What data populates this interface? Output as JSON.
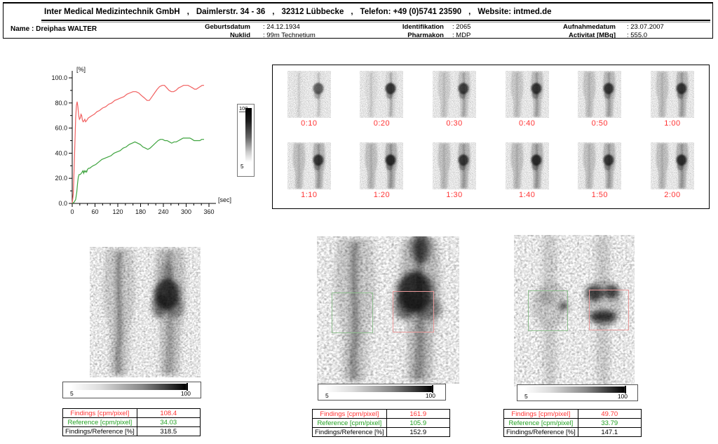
{
  "colors": {
    "red": "#ff3333",
    "green": "#22a122",
    "roi_green": "#8ebf8e",
    "roi_red": "#ea9a9a",
    "curve_red": "#f15f5f",
    "curve_green": "#3fa43f"
  },
  "header": {
    "company_segments": [
      "Inter Medical Medizintechnik GmbH",
      "Daimlerstr. 34 - 36",
      "32312 Lübbecke",
      "Telefon: +49 (0)5741 23590",
      "Website: intmed.de"
    ],
    "company_separator": ",",
    "patient": {
      "name_label": "Name",
      "name_value": ": Dreiphas WALTER",
      "fields": [
        {
          "label": "Geburtsdatum",
          "value": ": 24.12.1934"
        },
        {
          "label": "Nuklid",
          "value": ": 99m Technetium"
        },
        {
          "label": "Identifikation",
          "value": ": 2065"
        },
        {
          "label": "Pharmakon",
          "value": ": MDP"
        },
        {
          "label": "Aufnahmedatum",
          "value": ": 23.07.2007"
        },
        {
          "label": "Activitat [MBq]",
          "value": ": 555.0"
        }
      ]
    }
  },
  "chart_data": {
    "type": "line",
    "title": "",
    "xlabel": "[sec]",
    "ylabel": "[%]",
    "xlim": [
      0,
      360
    ],
    "ylim": [
      0,
      100
    ],
    "xticks": [
      0,
      60,
      120,
      180,
      240,
      300,
      360
    ],
    "xtick_labels": [
      "0",
      "60",
      "120",
      "180",
      "240",
      "300",
      "360"
    ],
    "x_minor_step": 20,
    "yticks": [
      0,
      20,
      40,
      60,
      80,
      100
    ],
    "ytick_labels": [
      "0.0",
      "20.0",
      "40.0",
      "60.0",
      "80.0",
      "100.0"
    ],
    "y_minor_step": 10,
    "grid": false,
    "legend": null,
    "series": [
      {
        "name": "findings-curve",
        "color": "#f15f5f",
        "points": [
          [
            0,
            0
          ],
          [
            3,
            8
          ],
          [
            6,
            38
          ],
          [
            9,
            68
          ],
          [
            11,
            78
          ],
          [
            13,
            81
          ],
          [
            15,
            77
          ],
          [
            17,
            70
          ],
          [
            19,
            67
          ],
          [
            21,
            68
          ],
          [
            23,
            71
          ],
          [
            25,
            70
          ],
          [
            27,
            66
          ],
          [
            29,
            65
          ],
          [
            31,
            66
          ],
          [
            33,
            67
          ],
          [
            35,
            65
          ],
          [
            38,
            66
          ],
          [
            42,
            68
          ],
          [
            47,
            69
          ],
          [
            52,
            70
          ],
          [
            58,
            71
          ],
          [
            65,
            73
          ],
          [
            72,
            74
          ],
          [
            80,
            76
          ],
          [
            88,
            77
          ],
          [
            96,
            79
          ],
          [
            104,
            80
          ],
          [
            112,
            82
          ],
          [
            120,
            83
          ],
          [
            128,
            84
          ],
          [
            136,
            85
          ],
          [
            144,
            87
          ],
          [
            152,
            88
          ],
          [
            160,
            89
          ],
          [
            168,
            89
          ],
          [
            175,
            88
          ],
          [
            182,
            86
          ],
          [
            190,
            84
          ],
          [
            197,
            82
          ],
          [
            203,
            82
          ],
          [
            210,
            85
          ],
          [
            217,
            88
          ],
          [
            224,
            91
          ],
          [
            230,
            93
          ],
          [
            237,
            94
          ],
          [
            243,
            94
          ],
          [
            249,
            92
          ],
          [
            255,
            90
          ],
          [
            261,
            89
          ],
          [
            267,
            89
          ],
          [
            273,
            90
          ],
          [
            280,
            92
          ],
          [
            287,
            93
          ],
          [
            293,
            94
          ],
          [
            299,
            94
          ],
          [
            305,
            94
          ],
          [
            311,
            93
          ],
          [
            317,
            92
          ],
          [
            322,
            91
          ],
          [
            327,
            91
          ],
          [
            332,
            92
          ],
          [
            337,
            93
          ],
          [
            342,
            94
          ],
          [
            347,
            94
          ]
        ]
      },
      {
        "name": "reference-curve",
        "color": "#3fa43f",
        "points": [
          [
            0,
            0
          ],
          [
            5,
            1
          ],
          [
            9,
            3
          ],
          [
            12,
            9
          ],
          [
            14,
            16
          ],
          [
            16,
            21
          ],
          [
            18,
            23
          ],
          [
            21,
            23
          ],
          [
            24,
            24
          ],
          [
            26,
            25
          ],
          [
            28,
            26
          ],
          [
            30,
            24
          ],
          [
            32,
            26
          ],
          [
            34,
            25
          ],
          [
            36,
            26
          ],
          [
            38,
            25
          ],
          [
            40,
            27
          ],
          [
            43,
            28
          ],
          [
            46,
            28
          ],
          [
            50,
            29
          ],
          [
            55,
            30
          ],
          [
            62,
            31
          ],
          [
            70,
            33
          ],
          [
            78,
            35
          ],
          [
            86,
            36
          ],
          [
            94,
            37
          ],
          [
            102,
            38
          ],
          [
            110,
            40
          ],
          [
            118,
            41
          ],
          [
            126,
            42
          ],
          [
            134,
            44
          ],
          [
            142,
            45
          ],
          [
            150,
            47
          ],
          [
            158,
            48
          ],
          [
            165,
            49
          ],
          [
            172,
            48
          ],
          [
            179,
            47
          ],
          [
            186,
            45
          ],
          [
            193,
            44
          ],
          [
            199,
            43
          ],
          [
            205,
            44
          ],
          [
            212,
            46
          ],
          [
            219,
            48
          ],
          [
            226,
            50
          ],
          [
            232,
            51
          ],
          [
            238,
            51
          ],
          [
            244,
            50
          ],
          [
            250,
            50
          ],
          [
            256,
            49
          ],
          [
            262,
            48
          ],
          [
            268,
            49
          ],
          [
            274,
            49
          ],
          [
            280,
            50
          ],
          [
            286,
            51
          ],
          [
            292,
            52
          ],
          [
            298,
            52
          ],
          [
            304,
            52
          ],
          [
            310,
            52
          ],
          [
            316,
            51
          ],
          [
            321,
            50
          ],
          [
            326,
            50
          ],
          [
            331,
            50
          ],
          [
            336,
            50
          ],
          [
            341,
            51
          ],
          [
            347,
            51
          ]
        ]
      }
    ]
  },
  "vertical_colorbar": {
    "max": "100",
    "min": "5"
  },
  "film_grid": {
    "frames": [
      {
        "label": "0:10",
        "body": 0.05,
        "knee": 0.6
      },
      {
        "label": "0:20",
        "body": 0.16,
        "knee": 0.8
      },
      {
        "label": "0:30",
        "body": 0.32,
        "knee": 0.75
      },
      {
        "label": "0:40",
        "body": 0.4,
        "knee": 0.8
      },
      {
        "label": "0:50",
        "body": 0.44,
        "knee": 0.78
      },
      {
        "label": "1:00",
        "body": 0.45,
        "knee": 0.78
      },
      {
        "label": "1:10",
        "body": 0.48,
        "knee": 0.8
      },
      {
        "label": "1:20",
        "body": 0.5,
        "knee": 0.85
      },
      {
        "label": "1:30",
        "body": 0.48,
        "knee": 0.78
      },
      {
        "label": "1:40",
        "body": 0.5,
        "knee": 0.85
      },
      {
        "label": "1:50",
        "body": 0.48,
        "knee": 0.8
      },
      {
        "label": "2:00",
        "body": 0.5,
        "knee": 0.82
      }
    ]
  },
  "panels": [
    {
      "figure": "pool-early",
      "roi": false,
      "colorbar": {
        "min": "5",
        "max": "100"
      },
      "table": {
        "rows": [
          {
            "label": "Findings [cpm/pixel]",
            "value": "108.4",
            "color": "red"
          },
          {
            "label": "Reference [cpm/pixel]",
            "value": "34.03",
            "color": "green"
          },
          {
            "label": "Findings/Reference [%]",
            "value": "318.5",
            "color": "black"
          }
        ]
      }
    },
    {
      "figure": "pool-roi",
      "roi": true,
      "colorbar": {
        "min": "5",
        "max": "100"
      },
      "table": {
        "rows": [
          {
            "label": "Findings [cpm/pixel]",
            "value": "161.9",
            "color": "red"
          },
          {
            "label": "Reference [cpm/pixel]",
            "value": "105.9",
            "color": "green"
          },
          {
            "label": "Findings/Reference [%]",
            "value": "152.9",
            "color": "black"
          }
        ]
      }
    },
    {
      "figure": "late-roi",
      "roi": true,
      "colorbar": {
        "min": "5",
        "max": "100"
      },
      "table": {
        "rows": [
          {
            "label": "Findings [cpm/pixel]",
            "value": "49.70",
            "color": "red"
          },
          {
            "label": "Reference [cpm/pixel]",
            "value": "33.79",
            "color": "green"
          },
          {
            "label": "Findings/Reference [%]",
            "value": "147.1",
            "color": "black"
          }
        ]
      }
    }
  ]
}
